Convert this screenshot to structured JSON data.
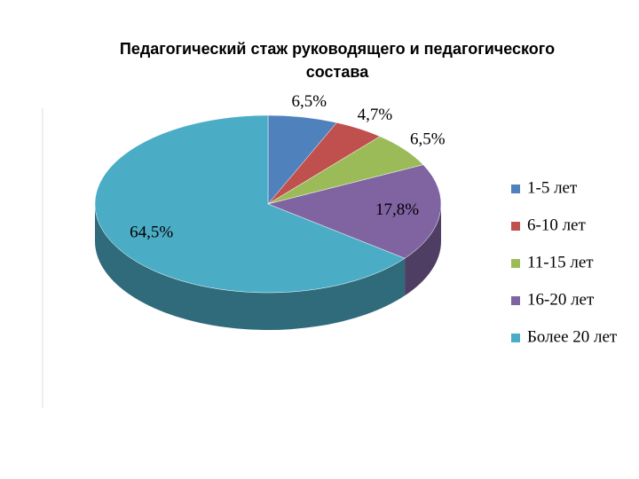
{
  "chart_data": {
    "type": "pie3d",
    "title": "Педагогический стаж руководящего и педагогического состава",
    "categories": [
      "1-5 лет",
      "6-10 лет",
      "11-15 лет",
      "16-20 лет",
      "Более 20 лет"
    ],
    "values": [
      6.5,
      4.7,
      6.5,
      17.8,
      64.5
    ],
    "value_labels": [
      "6,5%",
      "4,7%",
      "6,5%",
      "17,8%",
      "64,5%"
    ],
    "colors": [
      "#4f81bd",
      "#c0504d",
      "#9bbb59",
      "#8064a2",
      "#4bacc6"
    ],
    "legend": "right"
  }
}
